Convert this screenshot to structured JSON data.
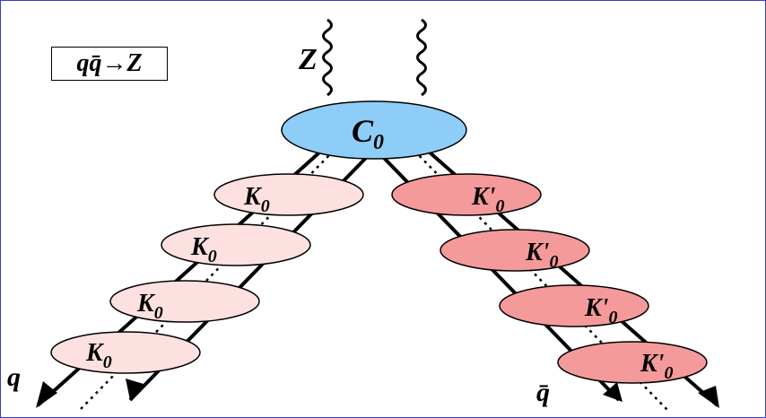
{
  "process_label": "qq̄→Z",
  "boson_label": "Z",
  "central_vertex": {
    "label": "C",
    "subscript": "0",
    "color": "#8ecdf7"
  },
  "left_kernels": {
    "label": "K",
    "subscript": "0",
    "color": "#fde0e0",
    "items": [
      "K0",
      "K0",
      "K0",
      "K0"
    ]
  },
  "right_kernels": {
    "label": "K'",
    "subscript": "0",
    "color": "#f49a9a",
    "items": [
      "K'0",
      "K'0",
      "K'0",
      "K'0"
    ]
  },
  "left_leg_label": "q",
  "right_leg_label": "q̄"
}
